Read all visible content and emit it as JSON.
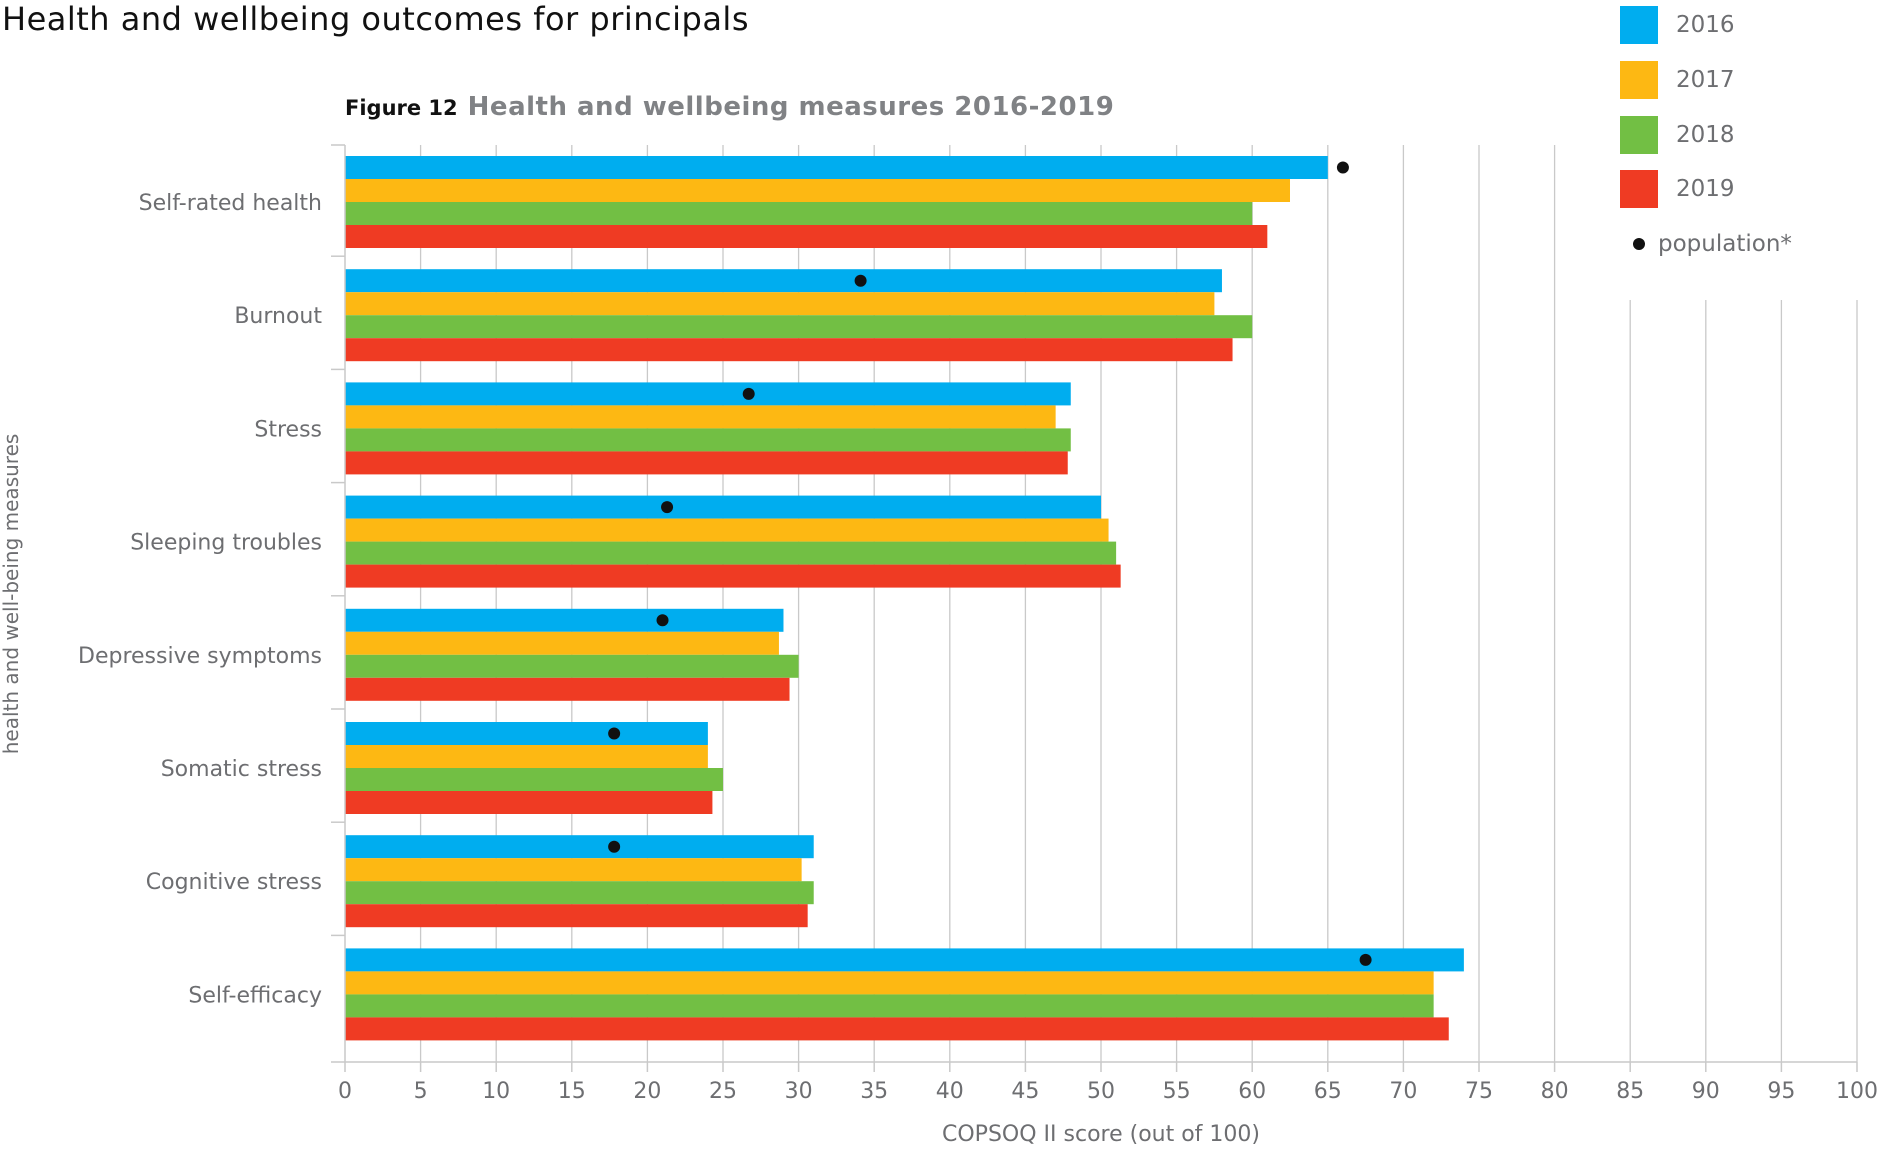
{
  "page_title": "Health and wellbeing outcomes for principals",
  "figure": {
    "number": "Figure 12",
    "title": "Health and wellbeing measures 2016-2019"
  },
  "legend": [
    {
      "label": "2016",
      "color": "#00adef"
    },
    {
      "label": "2017",
      "color": "#fdb813"
    },
    {
      "label": "2018",
      "color": "#72bf44"
    },
    {
      "label": "2019",
      "color": "#ef3b23"
    }
  ],
  "legend_population": {
    "label": "population*",
    "color": "#111111",
    "marker": "dot"
  },
  "chart_data": {
    "type": "bar",
    "orientation": "horizontal",
    "title": "Health and wellbeing measures 2016-2019",
    "xlabel": "COPSOQ II score (out of 100)",
    "ylabel": "health and well-being measures",
    "xlim": [
      0,
      100
    ],
    "xticks": [
      0,
      5,
      10,
      15,
      20,
      25,
      30,
      35,
      40,
      45,
      50,
      55,
      60,
      65,
      70,
      75,
      80,
      85,
      90,
      95,
      100
    ],
    "grid": "vertical",
    "legend_position": "top-right",
    "categories": [
      "Self-rated health",
      "Burnout",
      "Stress",
      "Sleeping troubles",
      "Depressive symptoms",
      "Somatic stress",
      "Cognitive stress",
      "Self-efficacy"
    ],
    "series": [
      {
        "name": "2016",
        "color": "#00adef",
        "values": [
          65,
          58,
          48,
          50,
          29,
          24,
          31,
          74
        ]
      },
      {
        "name": "2017",
        "color": "#fdb813",
        "values": [
          62.5,
          57.5,
          47,
          50.5,
          28.7,
          24,
          30.2,
          72
        ]
      },
      {
        "name": "2018",
        "color": "#72bf44",
        "values": [
          60,
          60,
          48,
          51,
          30,
          25,
          31,
          72
        ]
      },
      {
        "name": "2019",
        "color": "#ef3b23",
        "values": [
          61,
          58.7,
          47.8,
          51.3,
          29.4,
          24.3,
          30.6,
          73
        ]
      }
    ],
    "population": {
      "name": "population*",
      "values": [
        66,
        34.1,
        26.7,
        21.3,
        21,
        17.8,
        17.8,
        67.5
      ]
    }
  }
}
